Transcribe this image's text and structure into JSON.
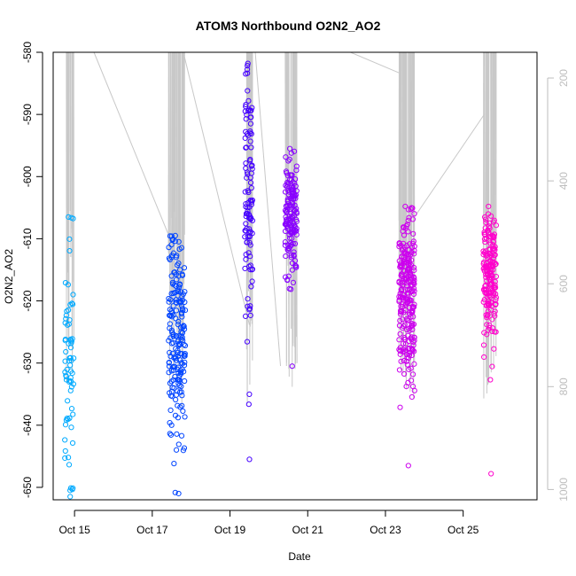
{
  "chart_data": {
    "type": "scatter",
    "title": "ATOM3 Northbound O2N2_AO2",
    "xlabel": "Date",
    "ylabel": "O2N2_AO2",
    "x_ticks": [
      "Oct 15",
      "Oct 17",
      "Oct 19",
      "Oct 21",
      "Oct 23",
      "Oct 25"
    ],
    "x_tick_days": [
      15,
      17,
      19,
      21,
      23,
      25
    ],
    "xlim": [
      14.45,
      26.9
    ],
    "ylim": [
      -652,
      -580
    ],
    "y_ticks": [
      -650,
      -640,
      -630,
      -620,
      -610,
      -600,
      -590,
      -580
    ],
    "y2lim": [
      1020,
      150
    ],
    "y2_ticks": [
      200,
      400,
      600,
      800,
      1000
    ],
    "grid": false,
    "point_color_scale": [
      "#00aaff",
      "#0044ff",
      "#4400ff",
      "#8800ff",
      "#cc00ee",
      "#ff00cc"
    ],
    "secondary_line_color": "#c8c8c8",
    "clusters": [
      {
        "day_min": 14.75,
        "day_max": 14.98,
        "y_min": -651.5,
        "y_max": -606.5,
        "y_center": -631,
        "n": 70
      },
      {
        "day_min": 17.42,
        "day_max": 17.85,
        "y_min": -651,
        "y_max": -609.5,
        "y_center": -627,
        "n": 200
      },
      {
        "day_min": 19.38,
        "day_max": 19.58,
        "y_min": -645.5,
        "y_max": -581.8,
        "y_center": -605,
        "n": 110
      },
      {
        "day_min": 20.42,
        "day_max": 20.72,
        "y_min": -630.5,
        "y_max": -595.5,
        "y_center": -606,
        "n": 150
      },
      {
        "day_min": 23.35,
        "day_max": 23.75,
        "y_min": -646.5,
        "y_max": -604.8,
        "y_center": -620,
        "n": 240
      },
      {
        "day_min": 25.52,
        "day_max": 25.85,
        "y_min": -647.8,
        "y_max": -604.8,
        "y_center": -617,
        "n": 180
      }
    ],
    "secondary_series": {
      "pressure_range": [
        200,
        850
      ],
      "segments": [
        {
          "x": [
            15.5,
            17.5
          ],
          "y": [
            150,
            520
          ]
        },
        {
          "x": [
            17.8,
            19.5
          ],
          "y": [
            150,
            680
          ]
        },
        {
          "x": [
            19.65,
            20.3
          ],
          "y": [
            150,
            760
          ]
        },
        {
          "x": [
            22.1,
            23.35
          ],
          "y": [
            150,
            190
          ]
        },
        {
          "x": [
            23.75,
            25.55
          ],
          "y": [
            470,
            270
          ]
        }
      ]
    }
  }
}
